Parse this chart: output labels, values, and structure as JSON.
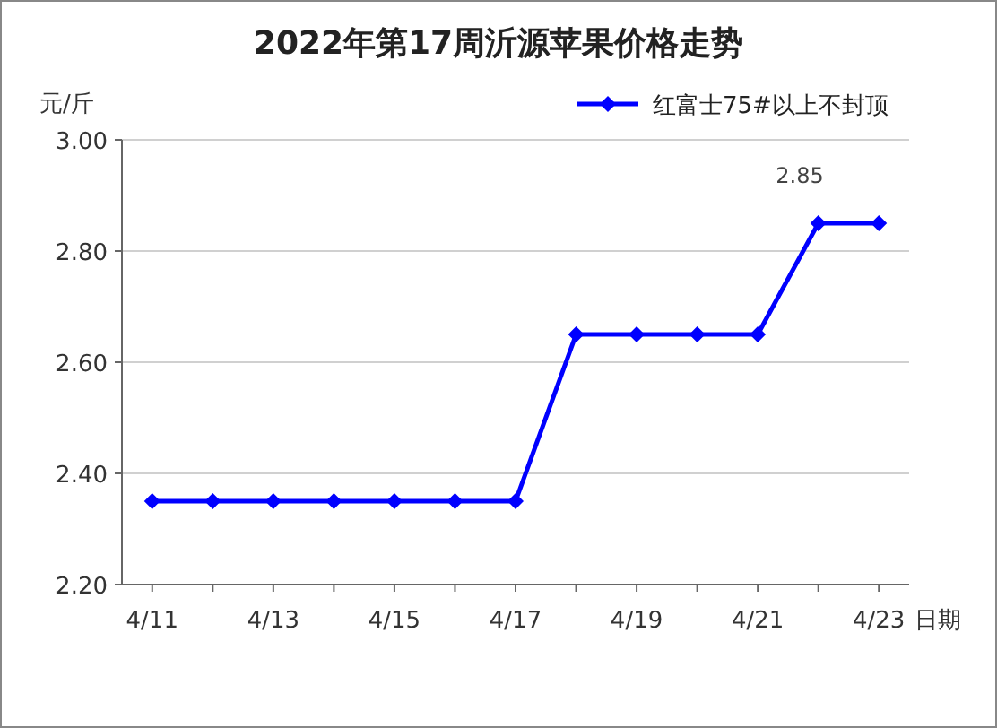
{
  "chart_data": {
    "type": "line",
    "title": "2022年第17周沂源苹果价格走势",
    "xlabel": "日期",
    "ylabel": "元/斤",
    "categories": [
      "4/11",
      null,
      "4/13",
      null,
      "4/15",
      null,
      "4/17",
      null,
      "4/19",
      null,
      "4/21",
      null,
      "4/23"
    ],
    "series": [
      {
        "name": "红富士75#以上不封顶",
        "color": "#0000ff",
        "values": [
          2.35,
          2.35,
          2.35,
          2.35,
          2.35,
          2.35,
          2.35,
          2.65,
          2.65,
          2.65,
          2.65,
          2.85,
          2.85
        ]
      }
    ],
    "ylim": [
      2.2,
      3.0
    ],
    "yticks": [
      {
        "value": 2.2,
        "label": "2.20"
      },
      {
        "value": 2.4,
        "label": "2.40"
      },
      {
        "value": 2.6,
        "label": "2.60"
      },
      {
        "value": 2.8,
        "label": "2.80"
      },
      {
        "value": 3.0,
        "label": "3.00"
      }
    ],
    "grid": "y",
    "legend": "top right",
    "marker": "diamond",
    "line_style": "solid",
    "annotations": [
      "2.85"
    ]
  }
}
